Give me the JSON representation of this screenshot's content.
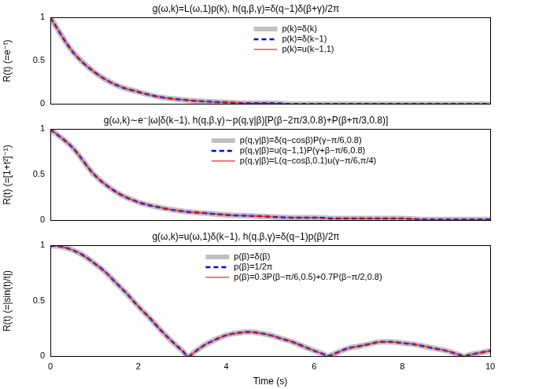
{
  "chart_data": [
    {
      "type": "line",
      "title": "g(ω,k)=L(ω,1)p(k), h(q,β,γ)=δ(q−1)δ(β+γ)/2π",
      "y_label": "R(t) (=e⁻ᵗ)",
      "x": [
        0,
        0.5,
        1,
        1.5,
        2,
        2.5,
        3,
        3.5,
        4,
        4.5,
        5,
        5.5,
        6,
        6.5,
        7,
        7.5,
        8,
        8.5,
        9,
        9.5,
        10
      ],
      "series": [
        {
          "name": "p(k)=δ(k)",
          "color": "#c0c0c0",
          "line_style": "solid",
          "values": [
            1,
            0.61,
            0.37,
            0.22,
            0.14,
            0.08,
            0.05,
            0.03,
            0.02,
            0.01,
            0.01,
            0,
            0,
            0,
            0,
            0,
            0,
            0,
            0,
            0,
            0
          ]
        },
        {
          "name": "p(k)=δ(k−1)",
          "color": "#0000ff",
          "line_style": "dashed",
          "values": [
            1,
            0.61,
            0.37,
            0.22,
            0.14,
            0.08,
            0.05,
            0.03,
            0.02,
            0.01,
            0.01,
            0,
            0,
            0,
            0,
            0,
            0,
            0,
            0,
            0,
            0
          ]
        },
        {
          "name": "p(k)=u(k−1,1)",
          "color": "#e8201a",
          "line_style": "solid",
          "values": [
            1,
            0.61,
            0.37,
            0.22,
            0.14,
            0.08,
            0.05,
            0.03,
            0.02,
            0.01,
            0.01,
            0,
            0,
            0,
            0,
            0,
            0,
            0,
            0,
            0,
            0
          ]
        }
      ],
      "xlim": [
        0,
        10
      ],
      "xticks": [
        0,
        2,
        4,
        6,
        8,
        10
      ],
      "ylim": [
        0,
        1
      ],
      "yticks": [
        0,
        0.5,
        1
      ],
      "grid": false,
      "legend": "upper center",
      "tick_labels": "y"
    },
    {
      "type": "line",
      "title": "g(ω,k)∼e⁻|ω|δ(k−1), h(q,β,γ)∼p(q,γ|β)[P(β−2π/3,0.8)+P(β+π/3,0.8)]",
      "y_label": "R(t) (=[1+t²]⁻¹)",
      "x": [
        0,
        0.5,
        1,
        1.5,
        2,
        2.5,
        3,
        3.5,
        4,
        4.5,
        5,
        5.5,
        6,
        6.5,
        7,
        7.5,
        8,
        8.5,
        9,
        9.5,
        10
      ],
      "series": [
        {
          "name": "p(q,γ|β)=δ(q−cosβ)P(γ−π/6,0.8)",
          "color": "#c0c0c0",
          "line_style": "solid",
          "values": [
            1,
            0.8,
            0.5,
            0.31,
            0.2,
            0.14,
            0.1,
            0.08,
            0.06,
            0.05,
            0.04,
            0.03,
            0.03,
            0.02,
            0.02,
            0.02,
            0.02,
            0.01,
            0.01,
            0.01,
            0.01
          ]
        },
        {
          "name": "p(q,γ|β)=u(q−1,1)P(γ+β−π/6,0.8)",
          "color": "#0000ff",
          "line_style": "dashed",
          "values": [
            1,
            0.8,
            0.5,
            0.31,
            0.2,
            0.14,
            0.1,
            0.08,
            0.06,
            0.05,
            0.04,
            0.03,
            0.03,
            0.02,
            0.02,
            0.02,
            0.02,
            0.01,
            0.01,
            0.01,
            0.01
          ]
        },
        {
          "name": "p(q,γ|β)=L(q−cosβ,0.1)u(γ−π/6,π/4)",
          "color": "#e8201a",
          "line_style": "solid",
          "values": [
            1,
            0.8,
            0.5,
            0.31,
            0.2,
            0.14,
            0.1,
            0.08,
            0.06,
            0.05,
            0.04,
            0.03,
            0.03,
            0.02,
            0.02,
            0.02,
            0.02,
            0.01,
            0.01,
            0.01,
            0.01
          ]
        }
      ],
      "xlim": [
        0,
        10
      ],
      "xticks": [
        0,
        2,
        4,
        6,
        8,
        10
      ],
      "ylim": [
        0,
        1
      ],
      "yticks": [
        0,
        0.5,
        1
      ],
      "grid": false,
      "legend": "upper center",
      "tick_labels": "y"
    },
    {
      "type": "line",
      "title": "g(ω,k)=u(ω,1)δ(k−1), h(q,β,γ)=δ(q−1)p(β)/2π",
      "y_label": "R(t) (=|sin(t)/t|)",
      "x_label": "Time (s)",
      "x": [
        0,
        0.25,
        0.5,
        0.75,
        1,
        1.25,
        1.5,
        1.75,
        2,
        2.25,
        2.5,
        2.75,
        3,
        3.14,
        3.25,
        3.5,
        3.75,
        4,
        4.25,
        4.5,
        4.75,
        5,
        5.25,
        5.5,
        5.75,
        6,
        6.25,
        6.28,
        6.5,
        6.75,
        7,
        7.25,
        7.5,
        7.75,
        8,
        8.25,
        8.5,
        8.75,
        9,
        9.25,
        9.42,
        9.5,
        9.75,
        10
      ],
      "series": [
        {
          "name": "p(β)=δ(β)",
          "color": "#c0c0c0",
          "line_style": "solid",
          "values": [
            1,
            0.99,
            0.96,
            0.91,
            0.84,
            0.76,
            0.66,
            0.56,
            0.45,
            0.35,
            0.24,
            0.14,
            0.05,
            0,
            0.03,
            0.1,
            0.15,
            0.19,
            0.21,
            0.22,
            0.21,
            0.19,
            0.16,
            0.13,
            0.09,
            0.05,
            0.01,
            0,
            0.03,
            0.07,
            0.09,
            0.11,
            0.13,
            0.13,
            0.12,
            0.11,
            0.09,
            0.07,
            0.05,
            0.02,
            0,
            0.01,
            0.03,
            0.05
          ]
        },
        {
          "name": "p(β)=1/2π",
          "color": "#0000ff",
          "line_style": "dashed",
          "values": [
            1,
            0.99,
            0.96,
            0.91,
            0.84,
            0.76,
            0.66,
            0.56,
            0.45,
            0.35,
            0.24,
            0.14,
            0.05,
            0,
            0.03,
            0.1,
            0.15,
            0.19,
            0.21,
            0.22,
            0.21,
            0.19,
            0.16,
            0.13,
            0.09,
            0.05,
            0.01,
            0,
            0.03,
            0.07,
            0.09,
            0.11,
            0.13,
            0.13,
            0.12,
            0.11,
            0.09,
            0.07,
            0.05,
            0.02,
            0,
            0.01,
            0.03,
            0.05
          ]
        },
        {
          "name": "p(β)=0.3P(β−π/6,0.5)+0.7P(β−π/2,0.8)",
          "color": "#e8201a",
          "line_style": "solid",
          "values": [
            1,
            0.99,
            0.96,
            0.91,
            0.84,
            0.76,
            0.66,
            0.56,
            0.45,
            0.35,
            0.24,
            0.14,
            0.05,
            0,
            0.03,
            0.1,
            0.15,
            0.19,
            0.21,
            0.22,
            0.21,
            0.19,
            0.16,
            0.13,
            0.09,
            0.05,
            0.01,
            0,
            0.03,
            0.07,
            0.09,
            0.11,
            0.13,
            0.13,
            0.12,
            0.11,
            0.09,
            0.07,
            0.05,
            0.02,
            0,
            0.01,
            0.03,
            0.05
          ]
        }
      ],
      "xlim": [
        0,
        10
      ],
      "xticks": [
        0,
        2,
        4,
        6,
        8,
        10
      ],
      "ylim": [
        0,
        1
      ],
      "yticks": [
        0,
        0.5,
        1
      ],
      "grid": false,
      "legend": "upper center"
    }
  ]
}
